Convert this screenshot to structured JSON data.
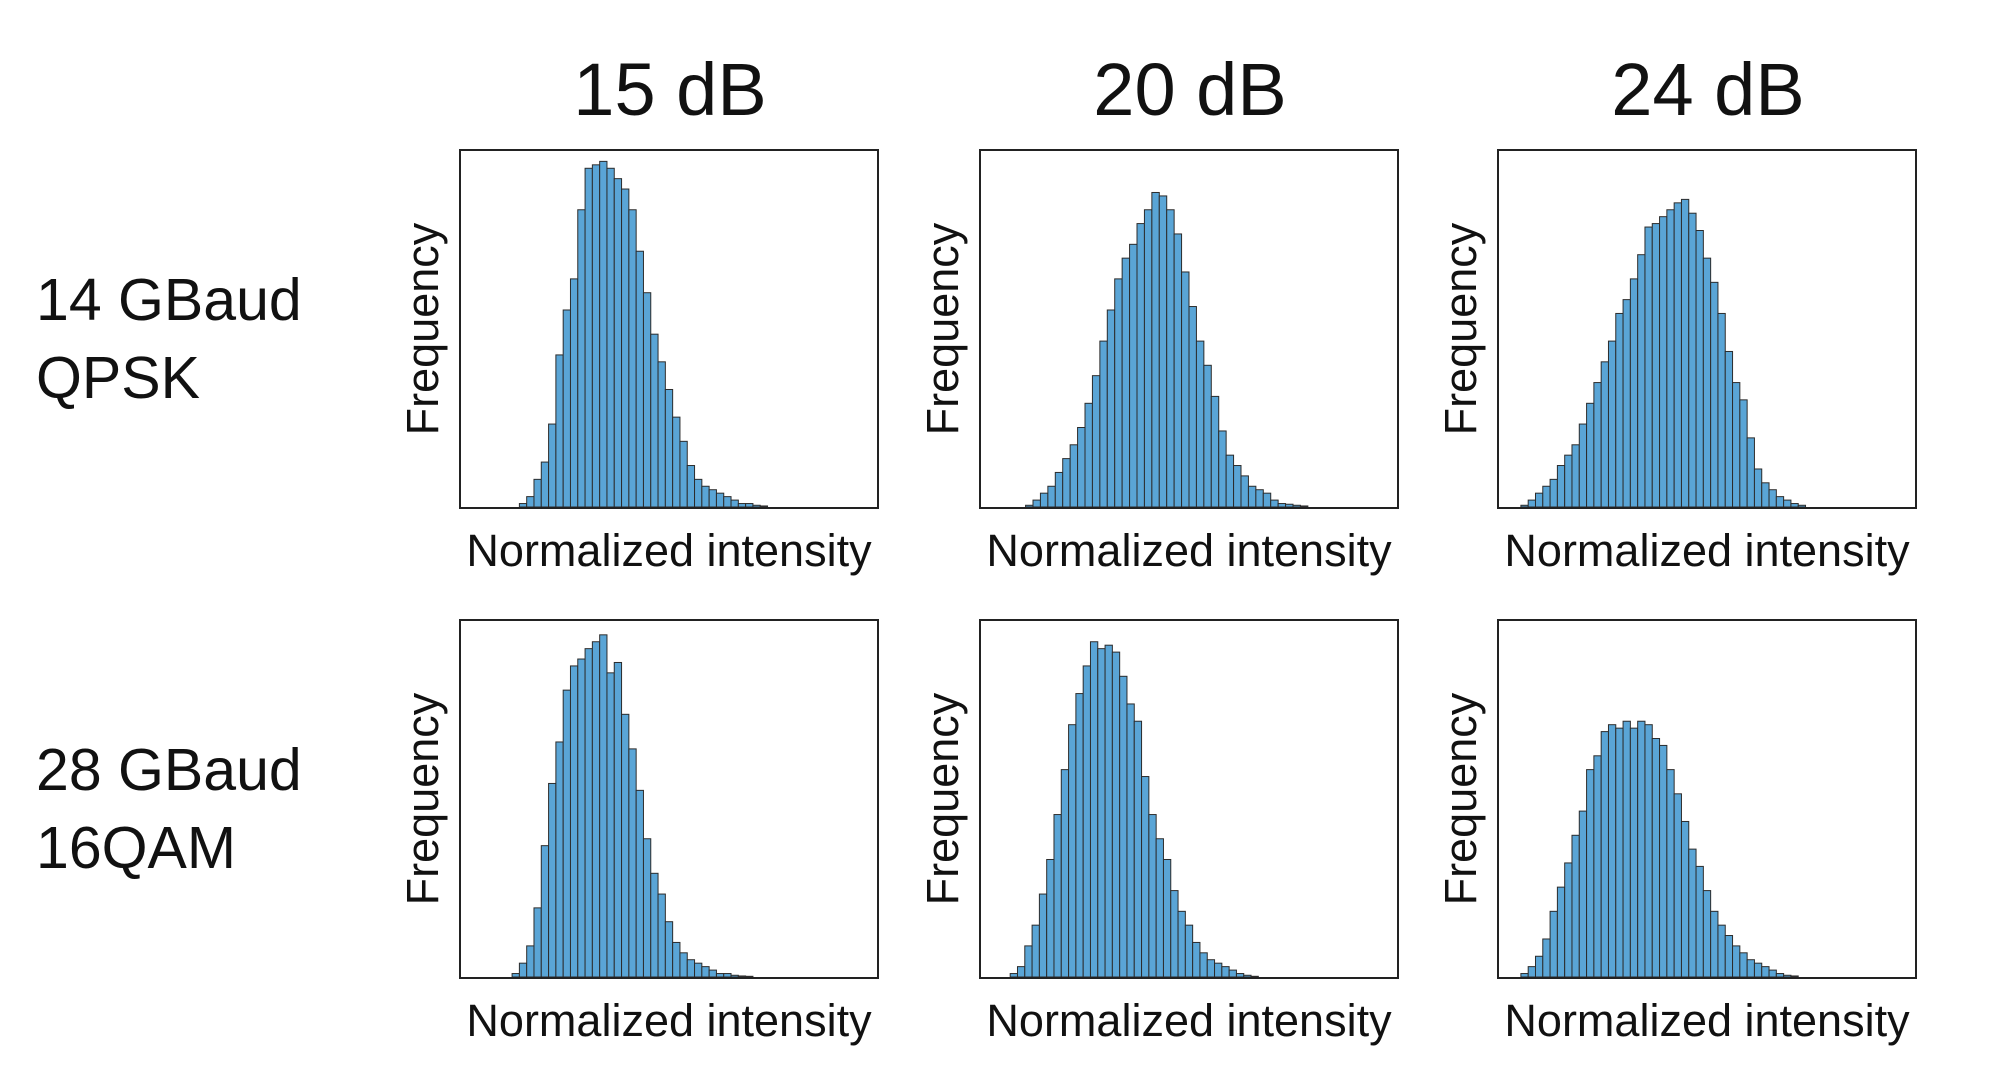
{
  "column_titles": [
    "15 dB",
    "20 dB",
    "24 dB"
  ],
  "row_labels": [
    {
      "line1": "14 GBaud",
      "line2": "QPSK"
    },
    {
      "line1": "28 GBaud",
      "line2": "16QAM"
    }
  ],
  "colors": {
    "bar_fill": "#5aa5d6",
    "bar_edge": "#2c2c2c",
    "frame": "#222222"
  },
  "chart_data": [
    {
      "type": "bar",
      "row": 0,
      "col": 0,
      "title": "15 dB",
      "xlabel": "Normalized intensity",
      "ylabel": "Frequency",
      "grid": false,
      "x_ticks": "none",
      "y_ticks": "none",
      "ylim": [
        0,
        1.03
      ],
      "values": [
        0,
        0,
        0,
        0,
        0,
        0,
        0,
        0,
        0.01,
        0.03,
        0.08,
        0.13,
        0.24,
        0.44,
        0.57,
        0.66,
        0.86,
        0.98,
        0.99,
        1.0,
        0.98,
        0.95,
        0.92,
        0.86,
        0.74,
        0.62,
        0.5,
        0.42,
        0.34,
        0.26,
        0.19,
        0.12,
        0.08,
        0.06,
        0.05,
        0.04,
        0.03,
        0.02,
        0.01,
        0.01,
        0.005,
        0.003,
        0,
        0,
        0,
        0,
        0,
        0,
        0,
        0,
        0,
        0,
        0,
        0,
        0,
        0,
        0
      ]
    },
    {
      "type": "bar",
      "row": 0,
      "col": 1,
      "title": "20 dB",
      "xlabel": "Normalized intensity",
      "ylabel": "Frequency",
      "grid": false,
      "x_ticks": "none",
      "y_ticks": "none",
      "ylim": [
        0,
        1.03
      ],
      "values": [
        0,
        0,
        0,
        0,
        0,
        0,
        0.005,
        0.02,
        0.04,
        0.06,
        0.1,
        0.14,
        0.18,
        0.23,
        0.3,
        0.38,
        0.48,
        0.57,
        0.66,
        0.72,
        0.76,
        0.82,
        0.86,
        0.91,
        0.9,
        0.86,
        0.79,
        0.68,
        0.58,
        0.48,
        0.41,
        0.32,
        0.22,
        0.15,
        0.12,
        0.09,
        0.06,
        0.05,
        0.04,
        0.02,
        0.01,
        0.008,
        0.005,
        0.003,
        0,
        0,
        0,
        0,
        0,
        0,
        0,
        0,
        0,
        0,
        0,
        0
      ]
    },
    {
      "type": "bar",
      "row": 0,
      "col": 2,
      "title": "24 dB",
      "xlabel": "Normalized intensity",
      "ylabel": "Frequency",
      "grid": false,
      "x_ticks": "none",
      "y_ticks": "none",
      "ylim": [
        0,
        1.03
      ],
      "values": [
        0,
        0,
        0,
        0.005,
        0.02,
        0.04,
        0.06,
        0.08,
        0.12,
        0.15,
        0.18,
        0.24,
        0.3,
        0.36,
        0.42,
        0.48,
        0.56,
        0.6,
        0.66,
        0.73,
        0.81,
        0.82,
        0.84,
        0.86,
        0.88,
        0.89,
        0.85,
        0.8,
        0.72,
        0.65,
        0.56,
        0.45,
        0.36,
        0.31,
        0.2,
        0.11,
        0.07,
        0.05,
        0.03,
        0.02,
        0.01,
        0.005,
        0,
        0,
        0,
        0,
        0,
        0,
        0,
        0,
        0,
        0,
        0,
        0,
        0,
        0,
        0
      ]
    },
    {
      "type": "bar",
      "row": 1,
      "col": 0,
      "title": "15 dB",
      "xlabel": "Normalized intensity",
      "ylabel": "Frequency",
      "grid": false,
      "x_ticks": "none",
      "y_ticks": "none",
      "ylim": [
        0,
        1.03
      ],
      "values": [
        0,
        0,
        0,
        0,
        0,
        0,
        0,
        0.01,
        0.04,
        0.09,
        0.2,
        0.38,
        0.56,
        0.68,
        0.83,
        0.9,
        0.92,
        0.95,
        0.97,
        0.99,
        0.88,
        0.91,
        0.76,
        0.66,
        0.54,
        0.4,
        0.3,
        0.24,
        0.16,
        0.1,
        0.07,
        0.05,
        0.04,
        0.03,
        0.02,
        0.01,
        0.01,
        0.005,
        0.003,
        0.002,
        0,
        0,
        0,
        0,
        0,
        0,
        0,
        0,
        0,
        0,
        0,
        0,
        0,
        0,
        0,
        0,
        0
      ]
    },
    {
      "type": "bar",
      "row": 1,
      "col": 1,
      "title": "20 dB",
      "xlabel": "Normalized intensity",
      "ylabel": "Frequency",
      "grid": false,
      "x_ticks": "none",
      "y_ticks": "none",
      "ylim": [
        0,
        1.03
      ],
      "values": [
        0,
        0,
        0,
        0,
        0.01,
        0.03,
        0.09,
        0.15,
        0.24,
        0.34,
        0.47,
        0.6,
        0.73,
        0.82,
        0.9,
        0.97,
        0.95,
        0.96,
        0.94,
        0.87,
        0.79,
        0.74,
        0.58,
        0.47,
        0.4,
        0.34,
        0.25,
        0.19,
        0.15,
        0.1,
        0.07,
        0.05,
        0.04,
        0.03,
        0.02,
        0.01,
        0.005,
        0.002,
        0,
        0,
        0,
        0,
        0,
        0,
        0,
        0,
        0,
        0,
        0,
        0,
        0,
        0,
        0,
        0,
        0,
        0,
        0
      ]
    },
    {
      "type": "bar",
      "row": 1,
      "col": 2,
      "title": "24 dB",
      "xlabel": "Normalized intensity",
      "ylabel": "Frequency",
      "grid": false,
      "x_ticks": "none",
      "y_ticks": "none",
      "ylim": [
        0,
        1.03
      ],
      "values": [
        0,
        0,
        0,
        0.01,
        0.03,
        0.06,
        0.11,
        0.19,
        0.26,
        0.33,
        0.41,
        0.48,
        0.6,
        0.64,
        0.71,
        0.73,
        0.72,
        0.74,
        0.72,
        0.74,
        0.73,
        0.69,
        0.67,
        0.6,
        0.53,
        0.45,
        0.37,
        0.32,
        0.25,
        0.19,
        0.15,
        0.12,
        0.09,
        0.07,
        0.05,
        0.04,
        0.03,
        0.02,
        0.01,
        0.005,
        0.003,
        0,
        0,
        0,
        0,
        0,
        0,
        0,
        0,
        0,
        0,
        0,
        0,
        0,
        0,
        0,
        0
      ]
    }
  ]
}
